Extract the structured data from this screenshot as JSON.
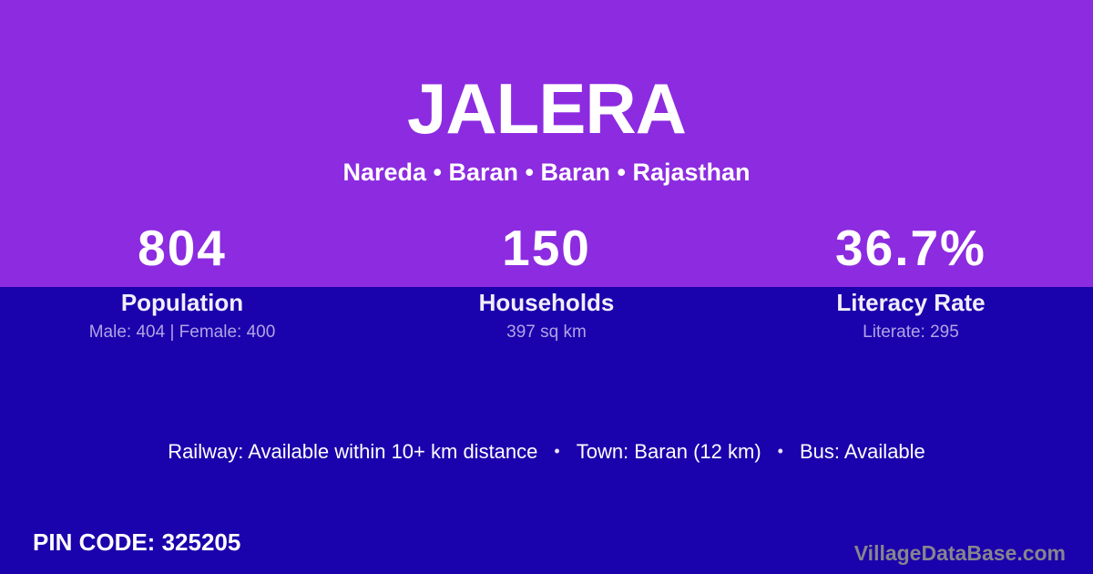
{
  "page": {
    "title": "JALERA",
    "subtitle": "Nareda • Baran • Baran • Rajasthan"
  },
  "stats": [
    {
      "value": "804",
      "label": "Population",
      "detail": "Male: 404 | Female: 400"
    },
    {
      "value": "150",
      "label": "Households",
      "detail": "397 sq km"
    },
    {
      "value": "36.7%",
      "label": "Literacy Rate",
      "detail": "Literate: 295"
    }
  ],
  "transport": {
    "railway": "Railway: Available within 10+ km distance",
    "town": "Town: Baran (12 km)",
    "bus": "Bus: Available",
    "separator": "•"
  },
  "footer": {
    "pin_code": "PIN CODE: 325205",
    "watermark": "VillageDataBase.com"
  },
  "colors": {
    "top_background": "#8C2BE0",
    "bottom_background": "#1A02AC",
    "primary_text": "#FFFFFF",
    "detail_text": "#B1A3E6",
    "watermark_text": "#85858D"
  }
}
